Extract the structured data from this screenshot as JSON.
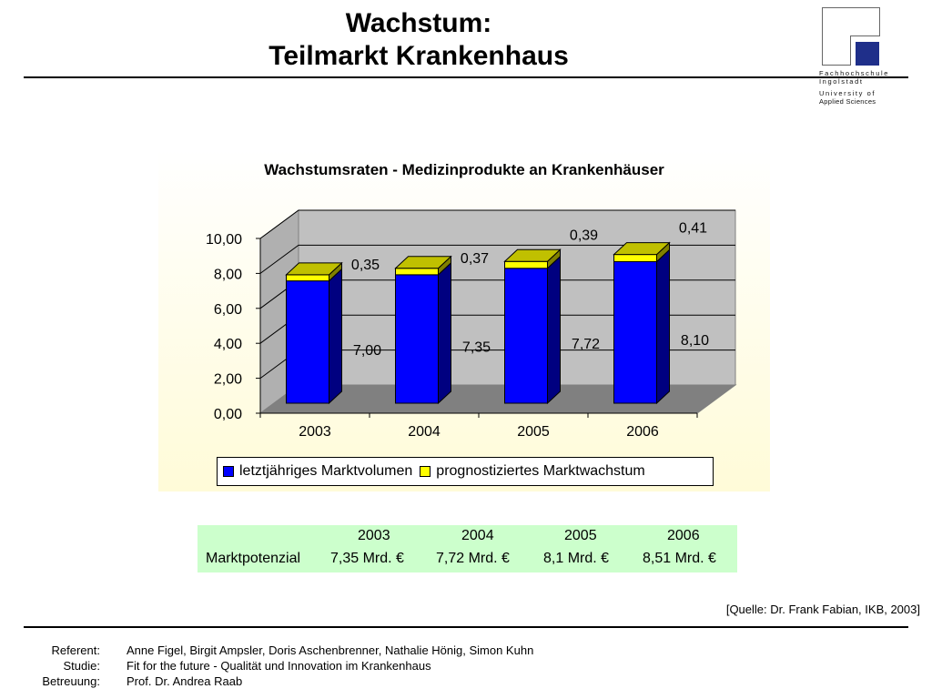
{
  "header": {
    "title_line1": "Wachstum:",
    "title_line2": "Teilmarkt Krankenhaus"
  },
  "logo": {
    "line1": "Fachhochschule",
    "line2": "Ingolstadt",
    "line3": "University of",
    "line4": "Applied Sciences",
    "accent": "#1f2f8a"
  },
  "chart_data": {
    "type": "bar",
    "stacked": true,
    "three_d": true,
    "title": "Wachstumsraten - Medizinprodukte an Krankenhäuser",
    "categories": [
      "2003",
      "2004",
      "2005",
      "2006"
    ],
    "series": [
      {
        "name": "letztjähriges Marktvolumen",
        "values": [
          7.0,
          7.35,
          7.72,
          8.1
        ],
        "labels": [
          "7,00",
          "7,35",
          "7,72",
          "8,10"
        ],
        "color": "#0000ff"
      },
      {
        "name": "prognostiziertes Marktwachstum",
        "values": [
          0.35,
          0.37,
          0.39,
          0.41
        ],
        "labels": [
          "0,35",
          "0,37",
          "0,39",
          "0,41"
        ],
        "color": "#ffff00"
      }
    ],
    "yticks": [
      "0,00",
      "2,00",
      "4,00",
      "6,00",
      "8,00",
      "10,00"
    ],
    "ylim": [
      0,
      10
    ],
    "grid": true,
    "legend_position": "bottom"
  },
  "table": {
    "header": [
      "",
      "2003",
      "2004",
      "2005",
      "2006"
    ],
    "row_label": "Marktpotenzial",
    "values": [
      "7,35 Mrd. €",
      "7,72 Mrd. €",
      "8,1 Mrd. €",
      "8,51 Mrd. €"
    ]
  },
  "source": "[Quelle: Dr. Frank Fabian, IKB, 2003]",
  "footer": {
    "referent_label": "Referent:",
    "referent_value": "Anne Figel, Birgit Ampsler, Doris Aschenbrenner, Nathalie Hönig, Simon Kuhn",
    "studie_label": "Studie:",
    "studie_value": "Fit for the future - Qualität und Innovation im Krankenhaus",
    "betreuung_label": "Betreuung:",
    "betreuung_value": "Prof. Dr. Andrea Raab"
  }
}
